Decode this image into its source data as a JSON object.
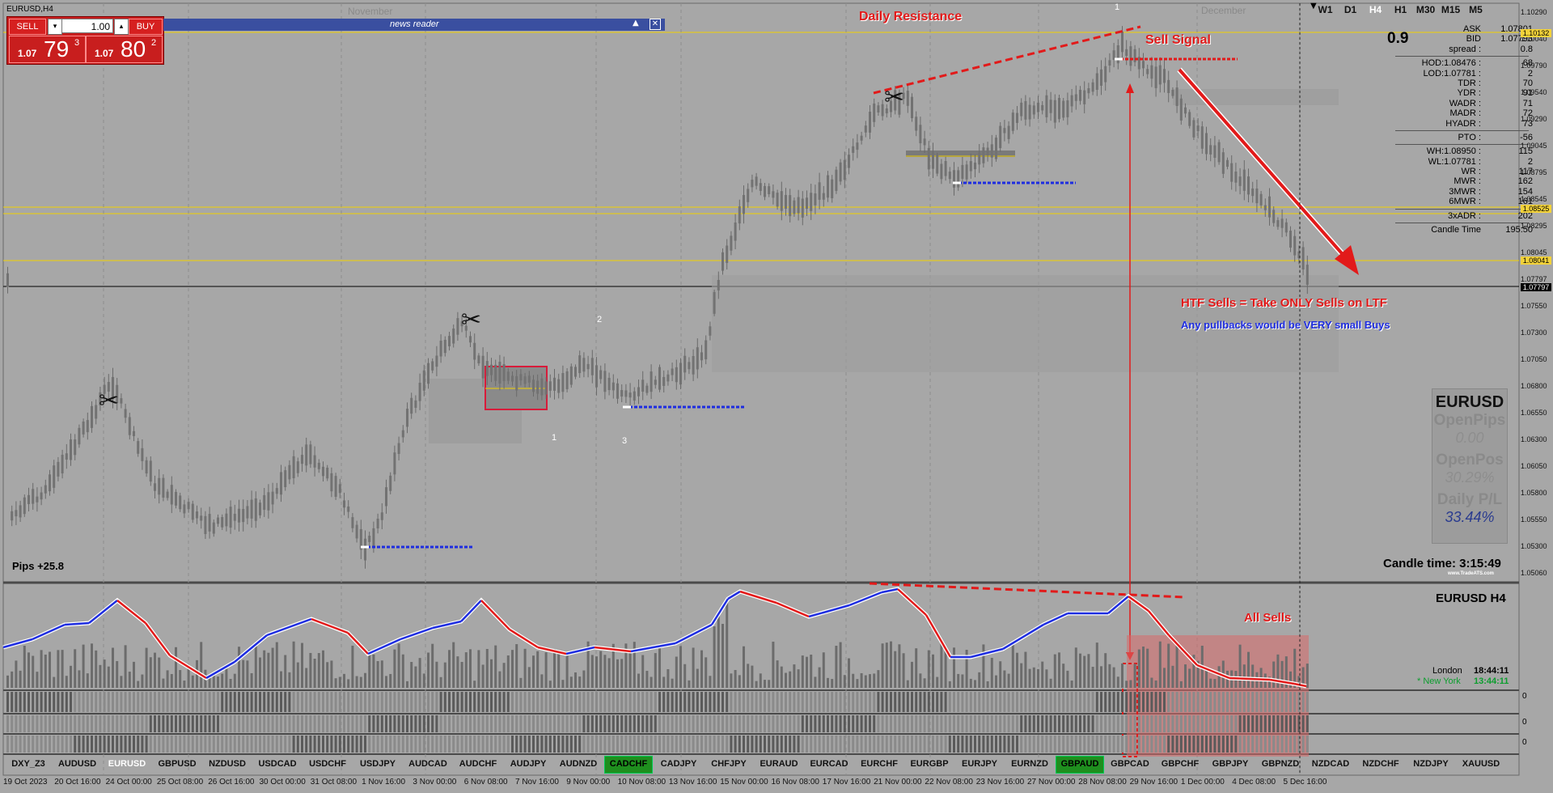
{
  "symbol_title": "EURUSD,H4",
  "trade_widget": {
    "sell_label": "SELL",
    "buy_label": "BUY",
    "lot": "1.00",
    "sell_big": "1.07",
    "sell_pips": "79",
    "sell_frac": "3",
    "buy_big": "1.07",
    "buy_pips": "80",
    "buy_frac": "2"
  },
  "news_bar": {
    "label": "news reader"
  },
  "month_labels": {
    "nov": "November",
    "dec": "December"
  },
  "timeframes": [
    "W1",
    "D1",
    "H4",
    "H1",
    "M30",
    "M15",
    "M5"
  ],
  "active_timeframe": "H4",
  "spread_big": "0.9",
  "stats": [
    {
      "k": "ASK",
      "v": "1.07801"
    },
    {
      "k": "BID",
      "v": "1.07793"
    },
    {
      "k": "spread :",
      "v": "0.8",
      "sep": true
    },
    {
      "k": "HOD:1.08476 :",
      "v": "68"
    },
    {
      "k": "LOD:1.07781 :",
      "v": "2"
    },
    {
      "k": "TDR :",
      "v": "70"
    },
    {
      "k": "YDR :",
      "v": "91"
    },
    {
      "k": "WADR :",
      "v": "71"
    },
    {
      "k": "MADR :",
      "v": "72"
    },
    {
      "k": "HYADR :",
      "v": "73",
      "sep": true
    },
    {
      "k": "PTO :",
      "v": "-56",
      "sep": true
    },
    {
      "k": "WH:1.08950 :",
      "v": "115"
    },
    {
      "k": "WL:1.07781 :",
      "v": "2"
    },
    {
      "k": "WR :",
      "v": "117"
    },
    {
      "k": "MWR :",
      "v": "162"
    },
    {
      "k": "3MWR :",
      "v": "154"
    },
    {
      "k": "6MWR :",
      "v": "161",
      "sep": true
    },
    {
      "k": "3xADR :",
      "v": "202",
      "sep": true
    },
    {
      "k": "Candle Time",
      "v": "195:50"
    }
  ],
  "price_axis": [
    "1.10290",
    "1.10040",
    "1.09790",
    "1.09540",
    "1.09290",
    "1.09045",
    "1.08795",
    "1.08545",
    "1.08295",
    "1.08045",
    "1.07797",
    "1.07550",
    "1.07300",
    "1.07050",
    "1.06800",
    "1.06550",
    "1.06300",
    "1.06050",
    "1.05800",
    "1.05550",
    "1.05300",
    "1.05060"
  ],
  "price_tags": [
    {
      "t": "1.10132",
      "bg": "#f2d23a"
    },
    {
      "t": "1.08525",
      "bg": "#f2d23a"
    },
    {
      "t": "1.08041",
      "bg": "#f2d23a"
    },
    {
      "t": "1.07797",
      "bg": "#000000",
      "fg": "#ffffff"
    }
  ],
  "annotations": {
    "daily_resistance": "Daily Resistance",
    "sell_signal": "Sell Signal",
    "htf": "HTF Sells = Take ONLY Sells on LTF",
    "pullbacks": "Any pullbacks would be VERY small Buys",
    "all_sells": "All Sells",
    "pips": "Pips +25.8",
    "wave1_top": "1",
    "wave2": "2",
    "wave1b": "1",
    "wave3": "3"
  },
  "ats_panel": {
    "symbol": "EURUSD",
    "open_pips_label": "OpenPips",
    "open_pips_value": "0.00",
    "open_pos_label": "OpenPos",
    "open_pos_value": "30.29%",
    "daily_pl_label": "Daily P/L",
    "daily_pl_value": "33.44%",
    "candle_time": "Candle time:  3:15:49",
    "brand": "www.TradeATS.com"
  },
  "subwindow": {
    "title": "EURUSD  H4",
    "london_label": "London",
    "london_time": "18:44:11",
    "ny_label": "* New York",
    "ny_time": "13:44:11",
    "zero1": "0",
    "zero2": "0",
    "zero3": "0"
  },
  "symbols": [
    {
      "s": "DXY_Z3"
    },
    {
      "s": "AUDUSD"
    },
    {
      "s": "EURUSD",
      "cur": true
    },
    {
      "s": "GBPUSD"
    },
    {
      "s": "NZDUSD"
    },
    {
      "s": "USDCAD"
    },
    {
      "s": "USDCHF"
    },
    {
      "s": "USDJPY"
    },
    {
      "s": "AUDCAD"
    },
    {
      "s": "AUDCHF"
    },
    {
      "s": "AUDJPY"
    },
    {
      "s": "AUDNZD"
    },
    {
      "s": "CADCHF",
      "green": true
    },
    {
      "s": "CADJPY"
    },
    {
      "s": "CHFJPY"
    },
    {
      "s": "EURAUD"
    },
    {
      "s": "EURCAD"
    },
    {
      "s": "EURCHF"
    },
    {
      "s": "EURGBP"
    },
    {
      "s": "EURJPY"
    },
    {
      "s": "EURNZD"
    },
    {
      "s": "GBPAUD",
      "green": true
    },
    {
      "s": "GBPCAD"
    },
    {
      "s": "GBPCHF"
    },
    {
      "s": "GBPJPY"
    },
    {
      "s": "GBPNZD"
    },
    {
      "s": "NZDCAD"
    },
    {
      "s": "NZDCHF"
    },
    {
      "s": "NZDJPY"
    },
    {
      "s": "XAUUSD"
    }
  ],
  "dates": [
    "19 Oct 2023",
    "20 Oct 16:00",
    "24 Oct 00:00",
    "25 Oct 08:00",
    "26 Oct 16:00",
    "30 Oct 00:00",
    "31 Oct 08:00",
    "1 Nov 16:00",
    "3 Nov 00:00",
    "6 Nov 08:00",
    "7 Nov 16:00",
    "9 Nov 00:00",
    "10 Nov 08:00",
    "13 Nov 16:00",
    "15 Nov 00:00",
    "16 Nov 08:00",
    "17 Nov 16:00",
    "21 Nov 00:00",
    "22 Nov 08:00",
    "23 Nov 16:00",
    "27 Nov 00:00",
    "28 Nov 08:00",
    "29 Nov 16:00",
    "1 Dec 00:00",
    "4 Dec 08:00",
    "5 Dec 16:00"
  ],
  "colors": {
    "bg": "#a7a7a7",
    "candle": "#6f6f6f",
    "red": "#e21a1a",
    "blue": "#1e2de0",
    "yellow": "#f0d000"
  }
}
